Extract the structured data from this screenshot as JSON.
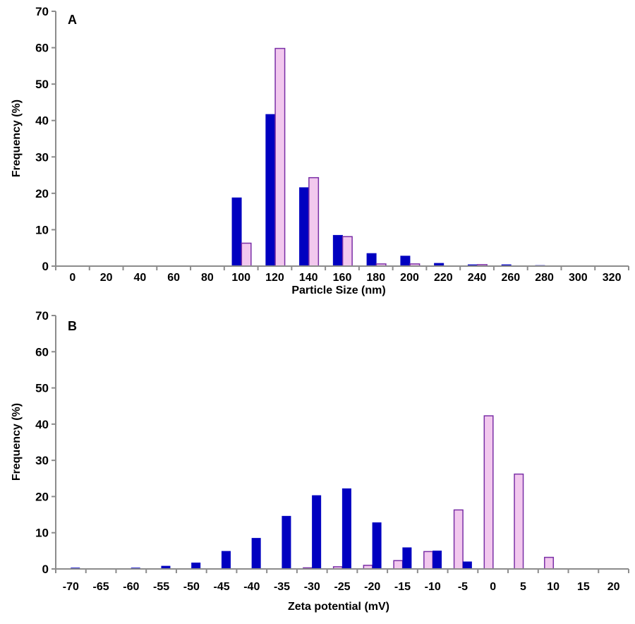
{
  "colors": {
    "series1": "#0000c0",
    "series2_fill": "#f2c8ee",
    "series2_stroke": "#7a2fa6",
    "axis": "#8c8c8c"
  },
  "chart_data": [
    {
      "type": "bar",
      "panel_label": "A",
      "xlabel": "Particle Size (nm)",
      "ylabel": "Frequency (%)",
      "ylim": [
        0,
        70
      ],
      "yticks": [
        "0",
        "10",
        "20",
        "30",
        "40",
        "50",
        "60",
        "70"
      ],
      "grid": false,
      "categories": [
        "0",
        "20",
        "40",
        "60",
        "80",
        "100",
        "120",
        "140",
        "160",
        "180",
        "200",
        "220",
        "240",
        "260",
        "280",
        "300",
        "320"
      ],
      "series": [
        {
          "values": [
            0,
            0,
            0,
            0,
            0,
            18.8,
            41.7,
            21.6,
            8.5,
            3.5,
            2.8,
            0.8,
            0.4,
            0.4,
            0.2,
            0,
            0
          ]
        },
        {
          "values": [
            0,
            0,
            0,
            0,
            0,
            6.3,
            59.8,
            24.3,
            8.1,
            0.6,
            0.6,
            0,
            0.4,
            0,
            0,
            0,
            0
          ]
        }
      ]
    },
    {
      "type": "bar",
      "panel_label": "B",
      "xlabel": "Zeta potential (mV)",
      "ylabel": "Frequency (%)",
      "ylim": [
        0,
        70
      ],
      "yticks": [
        "0",
        "10",
        "20",
        "30",
        "40",
        "50",
        "60",
        "70"
      ],
      "grid": false,
      "categories": [
        "-70",
        "-65",
        "-60",
        "-55",
        "-50",
        "-45",
        "-40",
        "-35",
        "-30",
        "-25",
        "-20",
        "-15",
        "-10",
        "-5",
        "0",
        "5",
        "10",
        "15",
        "20"
      ],
      "series": [
        {
          "values": [
            0,
            0,
            0,
            0,
            0,
            0,
            0,
            0,
            0.3,
            0.6,
            1.0,
            2.3,
            4.8,
            16.3,
            42.3,
            26.2,
            3.2,
            0,
            0
          ]
        },
        {
          "values": [
            0.3,
            0,
            0.3,
            0.8,
            1.7,
            4.9,
            8.5,
            14.6,
            20.3,
            22.2,
            12.8,
            5.9,
            5.0,
            2.0,
            0,
            0,
            0,
            0,
            0
          ]
        }
      ]
    }
  ]
}
